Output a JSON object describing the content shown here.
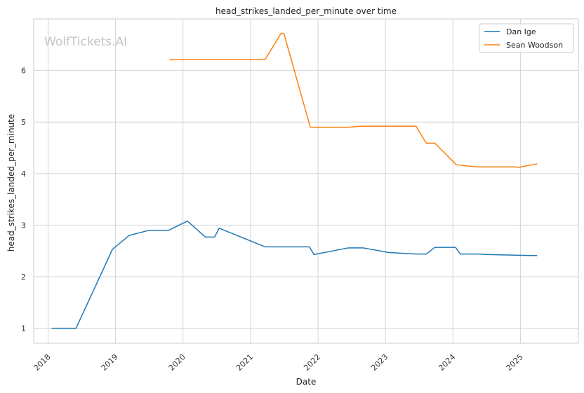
{
  "chart_data": {
    "type": "line",
    "title": "head_strikes_landed_per_minute over time",
    "xlabel": "Date",
    "ylabel": "head_strikes_landed_per_minute",
    "watermark": "WolfTickets.AI",
    "x_ticks": [
      "2018",
      "2019",
      "2020",
      "2021",
      "2022",
      "2023",
      "2024",
      "2025"
    ],
    "y_ticks": [
      1,
      2,
      3,
      4,
      5,
      6
    ],
    "xlim": [
      "2017-10-15",
      "2025-11-10"
    ],
    "ylim": [
      0.71,
      7.0
    ],
    "grid": true,
    "legend_position": "top-right",
    "colors": {
      "grid": "#d4d4d4",
      "axes": "#cccccc"
    },
    "series": [
      {
        "name": "Dan Ige",
        "color": "#1f77b4",
        "points": [
          [
            "2018-01-20",
            1.0
          ],
          [
            "2018-06-01",
            1.0
          ],
          [
            "2018-12-15",
            2.53
          ],
          [
            "2019-03-15",
            2.8
          ],
          [
            "2019-07-01",
            2.9
          ],
          [
            "2019-10-15",
            2.9
          ],
          [
            "2020-01-25",
            3.08
          ],
          [
            "2020-05-01",
            2.77
          ],
          [
            "2020-06-20",
            2.77
          ],
          [
            "2020-07-15",
            2.94
          ],
          [
            "2021-03-20",
            2.58
          ],
          [
            "2021-11-15",
            2.58
          ],
          [
            "2021-12-10",
            2.43
          ],
          [
            "2022-06-15",
            2.56
          ],
          [
            "2022-09-01",
            2.56
          ],
          [
            "2023-01-20",
            2.47
          ],
          [
            "2023-06-15",
            2.44
          ],
          [
            "2023-08-10",
            2.44
          ],
          [
            "2023-09-25",
            2.57
          ],
          [
            "2024-01-15",
            2.57
          ],
          [
            "2024-02-10",
            2.44
          ],
          [
            "2024-05-15",
            2.44
          ],
          [
            "2024-07-15",
            2.43
          ],
          [
            "2024-11-10",
            2.42
          ],
          [
            "2025-04-01",
            2.41
          ]
        ]
      },
      {
        "name": "Sean Woodson",
        "color": "#ff7f0e",
        "points": [
          [
            "2019-10-20",
            6.21
          ],
          [
            "2021-03-20",
            6.21
          ],
          [
            "2021-06-15",
            6.72
          ],
          [
            "2021-06-30",
            6.72
          ],
          [
            "2021-11-20",
            4.9
          ],
          [
            "2022-06-15",
            4.9
          ],
          [
            "2022-08-25",
            4.92
          ],
          [
            "2023-06-15",
            4.92
          ],
          [
            "2023-08-10",
            4.59
          ],
          [
            "2023-09-25",
            4.59
          ],
          [
            "2024-01-20",
            4.17
          ],
          [
            "2024-05-10",
            4.13
          ],
          [
            "2024-12-05",
            4.13
          ],
          [
            "2024-12-20",
            4.12
          ],
          [
            "2025-04-01",
            4.19
          ]
        ]
      }
    ]
  }
}
